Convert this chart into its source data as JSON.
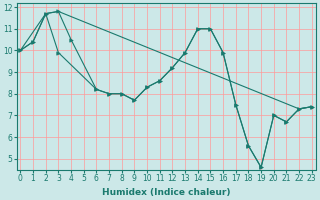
{
  "xlabel": "Humidex (Indice chaleur)",
  "bg_color": "#cce8e8",
  "grid_color": "#ff9999",
  "line_color": "#1a7a6e",
  "series": [
    {
      "x": [
        0,
        1,
        2,
        3,
        4,
        6,
        7,
        8,
        9,
        10,
        11,
        12,
        13,
        14,
        15,
        16,
        17,
        18,
        19,
        20,
        21,
        22,
        23
      ],
      "y": [
        10.0,
        10.4,
        11.7,
        11.8,
        10.5,
        8.2,
        8.0,
        8.0,
        7.7,
        8.3,
        8.6,
        9.2,
        9.9,
        11.0,
        11.0,
        9.9,
        7.5,
        5.6,
        4.6,
        7.0,
        6.7,
        7.3,
        7.4
      ],
      "marker": true
    },
    {
      "comment": "diagonal line only - from (0,10) through (2,11.7),(3,11.8) to (23,7.4)",
      "x": [
        0,
        2,
        3,
        22,
        23
      ],
      "y": [
        10.0,
        11.7,
        11.8,
        7.3,
        7.4
      ],
      "marker": false
    },
    {
      "x": [
        0,
        1,
        2,
        3,
        6,
        7,
        8,
        9,
        10,
        11,
        12,
        13,
        14,
        15,
        16,
        17,
        18,
        19,
        20,
        21,
        22,
        23
      ],
      "y": [
        10.0,
        10.4,
        11.7,
        9.9,
        8.2,
        8.0,
        8.0,
        7.7,
        8.3,
        8.6,
        9.2,
        9.9,
        11.0,
        11.0,
        9.9,
        7.5,
        5.6,
        4.6,
        7.0,
        6.7,
        7.3,
        7.4
      ],
      "marker": true
    }
  ],
  "xlim": [
    0,
    23
  ],
  "ylim": [
    4.5,
    12.2
  ],
  "yticks": [
    5,
    6,
    7,
    8,
    9,
    10,
    11,
    12
  ],
  "xticks": [
    0,
    1,
    2,
    3,
    4,
    5,
    6,
    7,
    8,
    9,
    10,
    11,
    12,
    13,
    14,
    15,
    16,
    17,
    18,
    19,
    20,
    21,
    22,
    23
  ]
}
